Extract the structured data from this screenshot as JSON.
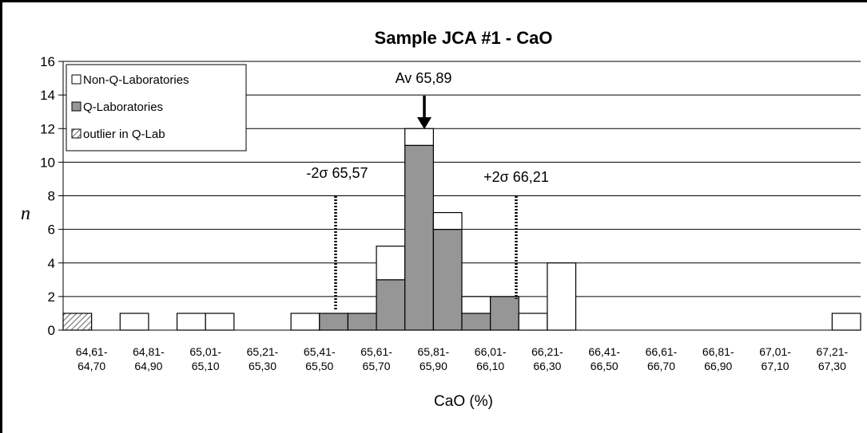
{
  "chart_data": {
    "type": "bar",
    "stacked": true,
    "title": "Sample JCA #1 - CaO",
    "xlabel": "CaO (%)",
    "ylabel": "n",
    "ylim": [
      0,
      16
    ],
    "yticks": [
      0,
      2,
      4,
      6,
      8,
      10,
      12,
      14,
      16
    ],
    "grid": true,
    "legend_position": "top-left",
    "categories": [
      [
        "64,61-",
        "64,70"
      ],
      [
        "",
        ""
      ],
      [
        "64,81-",
        "64,90"
      ],
      [
        "",
        ""
      ],
      [
        "65,01-",
        "65,10"
      ],
      [
        "",
        ""
      ],
      [
        "65,21-",
        "65,30"
      ],
      [
        "",
        ""
      ],
      [
        "65,41-",
        "65,50"
      ],
      [
        "",
        ""
      ],
      [
        "65,61-",
        "65,70"
      ],
      [
        "",
        ""
      ],
      [
        "65,81-",
        "65,90"
      ],
      [
        "",
        ""
      ],
      [
        "66,01-",
        "66,10"
      ],
      [
        "",
        ""
      ],
      [
        "66,21-",
        "66,30"
      ],
      [
        "",
        ""
      ],
      [
        "66,41-",
        "66,50"
      ],
      [
        "",
        ""
      ],
      [
        "66,61-",
        "66,70"
      ],
      [
        "",
        ""
      ],
      [
        "66,81-",
        "66,90"
      ],
      [
        "",
        ""
      ],
      [
        "67,01-",
        "67,10"
      ],
      [
        "",
        ""
      ],
      [
        "67,21-",
        "67,30"
      ],
      [
        "",
        ""
      ]
    ],
    "series": [
      {
        "name": "outlier in Q-Lab",
        "pattern": "hatch",
        "color": "#a0a0a0",
        "values": [
          1,
          0,
          0,
          0,
          0,
          0,
          0,
          0,
          0,
          0,
          0,
          0,
          0,
          0,
          0,
          0,
          0,
          0,
          0,
          0,
          0,
          0,
          0,
          0,
          0,
          0,
          0,
          0
        ]
      },
      {
        "name": "Q-Laboratories",
        "color": "#969696",
        "values": [
          0,
          0,
          0,
          0,
          0,
          0,
          0,
          0,
          0,
          1,
          1,
          3,
          11,
          6,
          1,
          2,
          0,
          0,
          0,
          0,
          0,
          0,
          0,
          0,
          0,
          0,
          0,
          0
        ]
      },
      {
        "name": "Non-Q-Laboratories",
        "color": "#ffffff",
        "values": [
          0,
          0,
          1,
          0,
          1,
          1,
          0,
          0,
          1,
          0,
          0,
          2,
          1,
          1,
          1,
          0,
          1,
          4,
          0,
          0,
          0,
          0,
          0,
          0,
          0,
          0,
          0,
          1
        ]
      }
    ],
    "annotations": {
      "average": {
        "label": "Av 65,89",
        "value": 65.89
      },
      "minus2sigma": {
        "label": "-2σ 65,57",
        "value": 65.57
      },
      "plus2sigma": {
        "label": "+2σ 66,21",
        "value": 66.21
      }
    }
  }
}
